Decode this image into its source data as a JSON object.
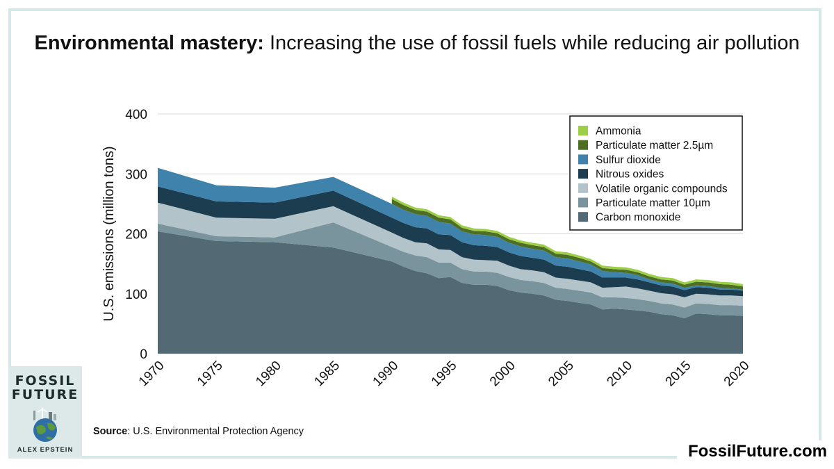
{
  "title": {
    "bold": "Environmental mastery:",
    "rest": "Increasing the use of fossil fuels while reducing air pollution"
  },
  "source": {
    "label": "Source",
    "text": ": U.S. Environmental Protection Agency"
  },
  "website": "FossilFuture.com",
  "book": {
    "title_line1": "FOSSIL",
    "title_line2": "FUTURE",
    "author": "ALEX EPSTEIN"
  },
  "chart_data": {
    "type": "area",
    "stacked": true,
    "ylabel": "U.S. emissions (million tons)",
    "xlabel": "",
    "xlim": [
      1970,
      2020
    ],
    "ylim": [
      0,
      400
    ],
    "yticks": [
      0,
      100,
      200,
      300,
      400
    ],
    "xticks": [
      1970,
      1975,
      1980,
      1985,
      1990,
      1995,
      2000,
      2005,
      2010,
      2015,
      2020
    ],
    "grid": "horizontal",
    "legend": "top-right",
    "series": [
      {
        "name": "Carbon monoxide",
        "color": "#536a74",
        "points": [
          [
            1970,
            204
          ],
          [
            1975,
            188
          ],
          [
            1980,
            186
          ],
          [
            1985,
            177
          ],
          [
            1990,
            154
          ],
          [
            1991,
            145
          ],
          [
            1992,
            138
          ],
          [
            1993,
            134
          ],
          [
            1994,
            126
          ],
          [
            1995,
            128
          ],
          [
            1996,
            118
          ],
          [
            1997,
            115
          ],
          [
            1998,
            115
          ],
          [
            1999,
            113
          ],
          [
            2000,
            106
          ],
          [
            2001,
            102
          ],
          [
            2002,
            100
          ],
          [
            2003,
            97
          ],
          [
            2004,
            90
          ],
          [
            2005,
            88
          ],
          [
            2006,
            85
          ],
          [
            2007,
            82
          ],
          [
            2008,
            74
          ],
          [
            2009,
            75
          ],
          [
            2010,
            74
          ],
          [
            2011,
            72
          ],
          [
            2012,
            70
          ],
          [
            2013,
            66
          ],
          [
            2014,
            64
          ],
          [
            2015,
            59
          ],
          [
            2016,
            67
          ],
          [
            2017,
            66
          ],
          [
            2018,
            64
          ],
          [
            2019,
            64
          ],
          [
            2020,
            63
          ]
        ]
      },
      {
        "name": "Particulate matter 10µm",
        "color": "#7a949d",
        "points": [
          [
            1970,
            13
          ],
          [
            1975,
            8
          ],
          [
            1980,
            8
          ],
          [
            1985,
            42
          ],
          [
            1990,
            24
          ],
          [
            1991,
            25
          ],
          [
            1992,
            26
          ],
          [
            1993,
            27
          ],
          [
            1994,
            26
          ],
          [
            1995,
            24
          ],
          [
            1996,
            23
          ],
          [
            1997,
            22
          ],
          [
            1998,
            22
          ],
          [
            1999,
            22
          ],
          [
            2000,
            22
          ],
          [
            2001,
            21
          ],
          [
            2002,
            21
          ],
          [
            2003,
            21
          ],
          [
            2004,
            20
          ],
          [
            2005,
            20
          ],
          [
            2006,
            20
          ],
          [
            2007,
            20
          ],
          [
            2008,
            20
          ],
          [
            2009,
            19
          ],
          [
            2010,
            19
          ],
          [
            2011,
            19
          ],
          [
            2012,
            18
          ],
          [
            2013,
            18
          ],
          [
            2014,
            18
          ],
          [
            2015,
            18
          ],
          [
            2016,
            17
          ],
          [
            2017,
            17
          ],
          [
            2018,
            17
          ],
          [
            2019,
            17
          ],
          [
            2020,
            17
          ]
        ]
      },
      {
        "name": "Volatile organic compounds",
        "color": "#b2c3c9",
        "points": [
          [
            1970,
            35
          ],
          [
            1975,
            31
          ],
          [
            1980,
            31
          ],
          [
            1985,
            27
          ],
          [
            1990,
            24
          ],
          [
            1991,
            23
          ],
          [
            1992,
            22
          ],
          [
            1993,
            23
          ],
          [
            1994,
            22
          ],
          [
            1995,
            21
          ],
          [
            1996,
            20
          ],
          [
            1997,
            20
          ],
          [
            1998,
            19
          ],
          [
            1999,
            20
          ],
          [
            2000,
            19
          ],
          [
            2001,
            18
          ],
          [
            2002,
            18
          ],
          [
            2003,
            18
          ],
          [
            2004,
            17
          ],
          [
            2005,
            17
          ],
          [
            2006,
            17
          ],
          [
            2007,
            17
          ],
          [
            2008,
            16
          ],
          [
            2009,
            17
          ],
          [
            2010,
            19
          ],
          [
            2011,
            18
          ],
          [
            2012,
            17
          ],
          [
            2013,
            17
          ],
          [
            2014,
            17
          ],
          [
            2015,
            17
          ],
          [
            2016,
            16
          ],
          [
            2017,
            16
          ],
          [
            2018,
            16
          ],
          [
            2019,
            16
          ],
          [
            2020,
            16
          ]
        ]
      },
      {
        "name": "Nitrous oxides",
        "color": "#1c3d4f",
        "points": [
          [
            1970,
            27
          ],
          [
            1975,
            27
          ],
          [
            1980,
            27
          ],
          [
            1985,
            26
          ],
          [
            1990,
            25
          ],
          [
            1991,
            25
          ],
          [
            1992,
            25
          ],
          [
            1993,
            25
          ],
          [
            1994,
            25
          ],
          [
            1995,
            25
          ],
          [
            1996,
            25
          ],
          [
            1997,
            24
          ],
          [
            1998,
            24
          ],
          [
            1999,
            23
          ],
          [
            2000,
            22
          ],
          [
            2001,
            22
          ],
          [
            2002,
            21
          ],
          [
            2003,
            21
          ],
          [
            2004,
            20
          ],
          [
            2005,
            20
          ],
          [
            2006,
            19
          ],
          [
            2007,
            18
          ],
          [
            2008,
            17
          ],
          [
            2009,
            16
          ],
          [
            2010,
            15
          ],
          [
            2011,
            15
          ],
          [
            2012,
            14
          ],
          [
            2013,
            13
          ],
          [
            2014,
            13
          ],
          [
            2015,
            12
          ],
          [
            2016,
            11
          ],
          [
            2017,
            11
          ],
          [
            2018,
            10
          ],
          [
            2019,
            10
          ],
          [
            2020,
            9
          ]
        ]
      },
      {
        "name": "Sulfur dioxide",
        "color": "#3f82ab",
        "points": [
          [
            1970,
            31
          ],
          [
            1975,
            27
          ],
          [
            1980,
            25
          ],
          [
            1985,
            23
          ],
          [
            1990,
            23
          ],
          [
            1991,
            22
          ],
          [
            1992,
            22
          ],
          [
            1993,
            21
          ],
          [
            1994,
            21
          ],
          [
            1995,
            19
          ],
          [
            1996,
            18
          ],
          [
            1997,
            18
          ],
          [
            1998,
            18
          ],
          [
            1999,
            17
          ],
          [
            2000,
            16
          ],
          [
            2001,
            16
          ],
          [
            2002,
            15
          ],
          [
            2003,
            15
          ],
          [
            2004,
            14
          ],
          [
            2005,
            14
          ],
          [
            2006,
            13
          ],
          [
            2007,
            12
          ],
          [
            2008,
            11
          ],
          [
            2009,
            9
          ],
          [
            2010,
            8
          ],
          [
            2011,
            7
          ],
          [
            2012,
            5
          ],
          [
            2013,
            5
          ],
          [
            2014,
            5
          ],
          [
            2015,
            4
          ],
          [
            2016,
            3
          ],
          [
            2017,
            3
          ],
          [
            2018,
            3
          ],
          [
            2019,
            2
          ],
          [
            2020,
            2
          ]
        ]
      },
      {
        "name": "Particulate matter 2.5µm",
        "color": "#4e6e24",
        "points": [
          [
            1990,
            8
          ],
          [
            1991,
            8
          ],
          [
            1992,
            7
          ],
          [
            1993,
            7
          ],
          [
            1994,
            7
          ],
          [
            1995,
            7
          ],
          [
            1996,
            6
          ],
          [
            1997,
            6
          ],
          [
            1998,
            6
          ],
          [
            1999,
            6
          ],
          [
            2000,
            6
          ],
          [
            2001,
            6
          ],
          [
            2002,
            6
          ],
          [
            2003,
            6
          ],
          [
            2004,
            6
          ],
          [
            2005,
            6
          ],
          [
            2006,
            6
          ],
          [
            2007,
            5
          ],
          [
            2008,
            5
          ],
          [
            2009,
            5
          ],
          [
            2010,
            5
          ],
          [
            2011,
            5
          ],
          [
            2012,
            5
          ],
          [
            2013,
            5
          ],
          [
            2014,
            5
          ],
          [
            2015,
            5
          ],
          [
            2016,
            6
          ],
          [
            2017,
            6
          ],
          [
            2018,
            6
          ],
          [
            2019,
            6
          ],
          [
            2020,
            5
          ]
        ]
      },
      {
        "name": "Ammonia",
        "color": "#9ccf47",
        "points": [
          [
            1990,
            4
          ],
          [
            1991,
            4
          ],
          [
            1992,
            4
          ],
          [
            1993,
            4
          ],
          [
            1994,
            4
          ],
          [
            1995,
            4
          ],
          [
            1996,
            4
          ],
          [
            1997,
            4
          ],
          [
            1998,
            4
          ],
          [
            1999,
            4
          ],
          [
            2000,
            4
          ],
          [
            2001,
            4
          ],
          [
            2002,
            4
          ],
          [
            2003,
            4
          ],
          [
            2004,
            4
          ],
          [
            2005,
            4
          ],
          [
            2006,
            4
          ],
          [
            2007,
            4
          ],
          [
            2008,
            4
          ],
          [
            2009,
            4
          ],
          [
            2010,
            4
          ],
          [
            2011,
            4
          ],
          [
            2012,
            4
          ],
          [
            2013,
            4
          ],
          [
            2014,
            4
          ],
          [
            2015,
            4
          ],
          [
            2016,
            4
          ],
          [
            2017,
            4
          ],
          [
            2018,
            4
          ],
          [
            2019,
            4
          ],
          [
            2020,
            4
          ]
        ]
      }
    ]
  }
}
